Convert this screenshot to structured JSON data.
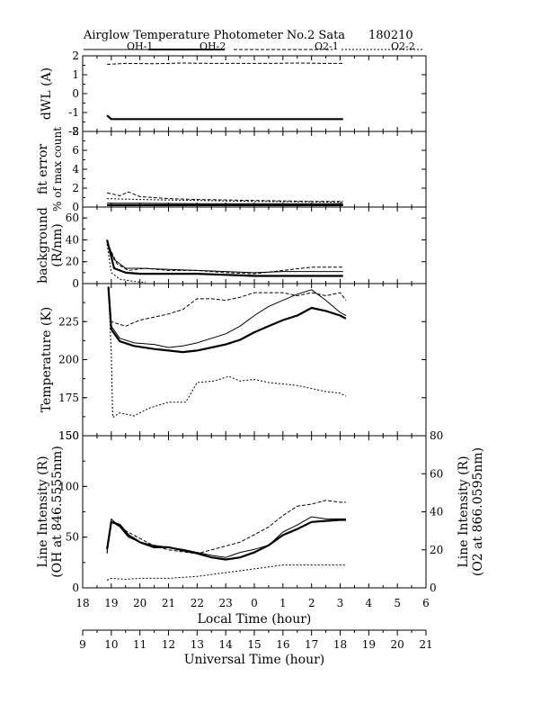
{
  "header": {
    "title": "Airglow Temperature Photometer No.2  Sata",
    "date": "180210",
    "legend": [
      "OH-1",
      "OH-2",
      "O2-1",
      "O2-2"
    ]
  },
  "chart_data": [
    {
      "type": "line",
      "panel": "dWL",
      "ylabel": "dWL (A)",
      "ylim": [
        -2,
        2
      ],
      "yticks": [
        "2",
        "1",
        "0",
        "-1",
        "-2"
      ],
      "series": [
        {
          "name": "OH-1",
          "style": "thick-solid",
          "x": [
            18.85,
            19.0,
            20.0,
            21.0,
            22.0,
            23.0,
            24.0,
            25.0,
            26.0,
            27.1
          ],
          "y": [
            -1.15,
            -1.35,
            -1.35,
            -1.35,
            -1.35,
            -1.35,
            -1.35,
            -1.35,
            -1.35,
            -1.35
          ]
        },
        {
          "name": "O2-1",
          "style": "dashed",
          "x": [
            18.85,
            19.5,
            20.5,
            21.5,
            22.5,
            23.5,
            24.5,
            25.5,
            26.5,
            27.1
          ],
          "y": [
            1.55,
            1.6,
            1.58,
            1.62,
            1.6,
            1.6,
            1.6,
            1.62,
            1.6,
            1.6
          ]
        }
      ]
    },
    {
      "type": "line",
      "panel": "fit error",
      "ylabel": "fit error",
      "ylabel2": "% of max count",
      "ylim": [
        0,
        8
      ],
      "yticks": [
        "8",
        "6",
        "4",
        "2",
        "0"
      ],
      "series": [
        {
          "name": "OH-1",
          "style": "thin-solid",
          "x": [
            18.85,
            20,
            22,
            24,
            26,
            27.1
          ],
          "y": [
            0.4,
            0.4,
            0.35,
            0.35,
            0.35,
            0.35
          ]
        },
        {
          "name": "OH-2",
          "style": "thick-solid",
          "x": [
            18.85,
            20,
            22,
            24,
            26,
            27.1
          ],
          "y": [
            0.2,
            0.2,
            0.2,
            0.2,
            0.2,
            0.2
          ]
        },
        {
          "name": "O2-1",
          "style": "dashed",
          "x": [
            18.85,
            19.3,
            19.6,
            20.0,
            20.5,
            21.0,
            22.0,
            23.0,
            24.0,
            25.0,
            26.0,
            27.1
          ],
          "y": [
            1.5,
            1.2,
            1.6,
            1.1,
            1.0,
            0.9,
            0.8,
            0.75,
            0.7,
            0.65,
            0.6,
            0.6
          ]
        },
        {
          "name": "O2-2",
          "style": "dotted",
          "x": [
            18.85,
            20,
            22,
            24,
            26,
            27.1
          ],
          "y": [
            0.9,
            0.8,
            0.7,
            0.6,
            0.55,
            0.5
          ]
        }
      ]
    },
    {
      "type": "line",
      "panel": "background",
      "ylabel": "background",
      "ylabel2": "(R/nm)",
      "ylim": [
        0,
        70
      ],
      "yticks": [
        "60",
        "40",
        "20",
        "0"
      ],
      "series": [
        {
          "name": "OH-1",
          "style": "thin-solid",
          "x": [
            18.85,
            19.1,
            19.5,
            20.0,
            21.0,
            22.0,
            23.0,
            24.0,
            25.0,
            26.0,
            27.1
          ],
          "y": [
            38,
            22,
            14,
            14,
            13,
            12,
            11,
            10,
            11,
            11,
            11
          ]
        },
        {
          "name": "OH-2",
          "style": "thick-solid",
          "x": [
            18.85,
            19.1,
            19.5,
            20.0,
            21.0,
            22.0,
            23.0,
            24.0,
            25.0,
            26.0,
            27.1
          ],
          "y": [
            40,
            14,
            10,
            9,
            9,
            9,
            8,
            7,
            7,
            7,
            7
          ]
        },
        {
          "name": "O2-1",
          "style": "dashed",
          "x": [
            18.85,
            19.2,
            19.6,
            20.2,
            21.0,
            22.0,
            23.0,
            24.0,
            25.0,
            26.0,
            27.1
          ],
          "y": [
            38,
            18,
            12,
            14,
            12,
            12,
            10,
            9,
            12,
            15,
            15
          ]
        },
        {
          "name": "O2-2",
          "style": "dotted",
          "x": [
            18.85,
            19.0,
            19.3,
            19.8,
            20.2
          ],
          "y": [
            36,
            10,
            4,
            2,
            1
          ]
        }
      ]
    },
    {
      "type": "line",
      "panel": "Temperature",
      "ylabel": "Temperature (K)",
      "ylim": [
        150,
        250
      ],
      "yticks": [
        "225",
        "200",
        "175",
        "150"
      ],
      "series": [
        {
          "name": "OH-1",
          "style": "thin-solid",
          "x": [
            18.9,
            19.0,
            19.3,
            19.8,
            20.5,
            21.0,
            21.5,
            22.0,
            22.5,
            23.0,
            23.5,
            24.0,
            24.5,
            25.0,
            25.5,
            26.0,
            26.5,
            27.0,
            27.2
          ],
          "y": [
            245,
            222,
            214,
            211,
            210,
            208,
            209,
            211,
            214,
            217,
            222,
            229,
            235,
            239,
            243,
            246,
            239,
            231,
            229
          ]
        },
        {
          "name": "OH-2",
          "style": "thick-solid",
          "x": [
            18.9,
            19.0,
            19.3,
            19.8,
            20.5,
            21.0,
            21.5,
            22.0,
            22.5,
            23.0,
            23.5,
            24.0,
            24.5,
            25.0,
            25.5,
            26.0,
            26.5,
            27.0,
            27.2
          ],
          "y": [
            248,
            220,
            212,
            209,
            207,
            206,
            205,
            206,
            208,
            210,
            213,
            218,
            222,
            226,
            229,
            234,
            232,
            229,
            227
          ]
        },
        {
          "name": "O2-1",
          "style": "dashed",
          "x": [
            18.9,
            19.0,
            19.5,
            20.0,
            20.5,
            21.0,
            21.5,
            22.0,
            22.5,
            23.0,
            23.5,
            24.0,
            24.5,
            25.0,
            25.5,
            26.0,
            26.5,
            27.0,
            27.2
          ],
          "y": [
            247,
            225,
            222,
            226,
            228,
            230,
            233,
            240,
            240,
            239,
            241,
            244,
            244,
            244,
            242,
            244,
            242,
            244,
            239
          ]
        },
        {
          "name": "O2-2",
          "style": "dotted",
          "x": [
            18.9,
            19.0,
            19.05,
            19.3,
            19.8,
            20.3,
            21.0,
            21.6,
            22.0,
            22.6,
            23.1,
            23.5,
            24.0,
            24.5,
            25.0,
            25.5,
            26.0,
            26.5,
            27.0,
            27.2
          ],
          "y": [
            247,
            205,
            162,
            165,
            163,
            168,
            172,
            172,
            185,
            186,
            189,
            186,
            187,
            185,
            184,
            183,
            181,
            179,
            178,
            176
          ]
        }
      ]
    },
    {
      "type": "line",
      "panel": "Line Intensity",
      "ylabel": "Line Intensity (R)",
      "ylabel2": "(OH at 846.5555nm)",
      "ylabel_right": "Line Intensity (R)",
      "ylabel_right2": "(O2 at 866.0595nm)",
      "ylim": [
        0,
        150
      ],
      "ylim_right": [
        0,
        80
      ],
      "yticks": [
        "150",
        "100",
        "50",
        "0"
      ],
      "yticks_right": [
        "80",
        "60",
        "40",
        "20",
        "0"
      ],
      "xlabel": "Local Time (hour)",
      "xlabel2": "Universal Time (hour)",
      "xticks": [
        "18",
        "19",
        "20",
        "21",
        "22",
        "23",
        "0",
        "1",
        "2",
        "3",
        "4",
        "5",
        "6"
      ],
      "xticks2": [
        "9",
        "10",
        "11",
        "12",
        "13",
        "14",
        "15",
        "16",
        "17",
        "18",
        "19",
        "20",
        "21"
      ],
      "xlim": [
        18,
        30
      ],
      "series": [
        {
          "name": "OH-1",
          "style": "thin-solid",
          "axis": "left",
          "x": [
            18.85,
            19.0,
            19.3,
            19.6,
            20.0,
            20.5,
            21.0,
            21.5,
            22.0,
            22.5,
            23.0,
            23.5,
            24.0,
            24.5,
            25.0,
            25.5,
            26.0,
            26.5,
            27.0,
            27.2
          ],
          "y": [
            35,
            68,
            60,
            50,
            45,
            42,
            40,
            38,
            35,
            32,
            30,
            35,
            38,
            42,
            55,
            62,
            70,
            68,
            68,
            68
          ]
        },
        {
          "name": "OH-2",
          "style": "thick-solid",
          "axis": "left",
          "x": [
            18.85,
            19.0,
            19.3,
            19.6,
            20.0,
            20.5,
            21.0,
            21.5,
            22.0,
            22.5,
            23.0,
            23.5,
            24.0,
            24.5,
            25.0,
            25.5,
            26.0,
            26.5,
            27.0,
            27.2
          ],
          "y": [
            38,
            65,
            62,
            52,
            45,
            40,
            40,
            37,
            34,
            30,
            28,
            30,
            35,
            42,
            52,
            58,
            65,
            66,
            67,
            67
          ]
        },
        {
          "name": "O2-1",
          "style": "dashed",
          "axis": "right",
          "x": [
            18.85,
            19.0,
            19.5,
            20.0,
            20.5,
            21.0,
            21.5,
            22.0,
            22.5,
            23.0,
            23.5,
            24.0,
            24.5,
            25.0,
            25.5,
            26.0,
            26.5,
            27.0,
            27.2
          ],
          "y": [
            18,
            35,
            30,
            26,
            22,
            20,
            19,
            18,
            20,
            22,
            24,
            28,
            32,
            38,
            43,
            44,
            46,
            45,
            45
          ]
        },
        {
          "name": "O2-2",
          "style": "dotted",
          "axis": "right",
          "x": [
            18.85,
            19.0,
            19.5,
            20.0,
            21.0,
            22.0,
            23.0,
            24.0,
            25.0,
            26.0,
            27.2
          ],
          "y": [
            4,
            5,
            4.5,
            5,
            5,
            6,
            8,
            10,
            12,
            12,
            12
          ]
        }
      ]
    }
  ]
}
